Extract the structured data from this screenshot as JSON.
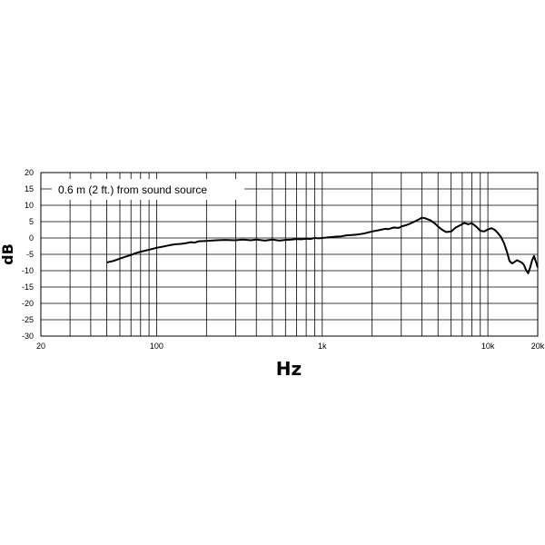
{
  "chart_data": {
    "type": "line",
    "title": "",
    "annotation": "0.6 m (2 ft.) from sound source",
    "xlabel": "Hz",
    "ylabel": "dB",
    "x_scale": "log",
    "xlim": [
      20,
      20000
    ],
    "ylim": [
      -30,
      20
    ],
    "y_ticks": [
      20,
      15,
      10,
      5,
      0,
      -5,
      -10,
      -15,
      -20,
      -25,
      -30
    ],
    "x_tick_labels": [
      {
        "value": 20,
        "label": "20"
      },
      {
        "value": 100,
        "label": "100"
      },
      {
        "value": 1000,
        "label": "1k"
      },
      {
        "value": 10000,
        "label": "10k"
      },
      {
        "value": 20000,
        "label": "20k"
      }
    ],
    "grid": true,
    "series": [
      {
        "color": "#000000",
        "points": [
          [
            50,
            -7.5
          ],
          [
            55,
            -7.0
          ],
          [
            60,
            -6.3
          ],
          [
            65,
            -5.7
          ],
          [
            70,
            -5.2
          ],
          [
            75,
            -4.6
          ],
          [
            80,
            -4.2
          ],
          [
            90,
            -3.6
          ],
          [
            100,
            -3.0
          ],
          [
            110,
            -2.6
          ],
          [
            120,
            -2.2
          ],
          [
            130,
            -1.9
          ],
          [
            140,
            -1.8
          ],
          [
            150,
            -1.6
          ],
          [
            160,
            -1.3
          ],
          [
            170,
            -1.4
          ],
          [
            180,
            -1.0
          ],
          [
            200,
            -0.9
          ],
          [
            230,
            -0.7
          ],
          [
            260,
            -0.6
          ],
          [
            300,
            -0.7
          ],
          [
            330,
            -0.5
          ],
          [
            370,
            -0.7
          ],
          [
            400,
            -0.5
          ],
          [
            450,
            -0.8
          ],
          [
            500,
            -0.5
          ],
          [
            550,
            -0.8
          ],
          [
            600,
            -0.6
          ],
          [
            650,
            -0.5
          ],
          [
            700,
            -0.3
          ],
          [
            750,
            -0.4
          ],
          [
            800,
            -0.2
          ],
          [
            850,
            -0.3
          ],
          [
            900,
            0.0
          ],
          [
            950,
            -0.1
          ],
          [
            1000,
            0.0
          ],
          [
            1100,
            0.2
          ],
          [
            1200,
            0.4
          ],
          [
            1300,
            0.5
          ],
          [
            1400,
            0.8
          ],
          [
            1500,
            0.9
          ],
          [
            1600,
            1.0
          ],
          [
            1700,
            1.2
          ],
          [
            1800,
            1.4
          ],
          [
            2000,
            2.0
          ],
          [
            2200,
            2.4
          ],
          [
            2400,
            2.8
          ],
          [
            2500,
            2.7
          ],
          [
            2700,
            3.2
          ],
          [
            2900,
            3.1
          ],
          [
            3000,
            3.5
          ],
          [
            3200,
            3.9
          ],
          [
            3400,
            4.4
          ],
          [
            3600,
            5.0
          ],
          [
            3800,
            5.6
          ],
          [
            4000,
            6.2
          ],
          [
            4200,
            6.0
          ],
          [
            4500,
            5.4
          ],
          [
            4800,
            4.4
          ],
          [
            5000,
            3.5
          ],
          [
            5300,
            2.5
          ],
          [
            5600,
            1.8
          ],
          [
            6000,
            2.0
          ],
          [
            6400,
            3.2
          ],
          [
            6800,
            3.9
          ],
          [
            7200,
            4.6
          ],
          [
            7600,
            4.2
          ],
          [
            8000,
            4.5
          ],
          [
            8500,
            3.5
          ],
          [
            9000,
            2.2
          ],
          [
            9500,
            2.0
          ],
          [
            10000,
            2.6
          ],
          [
            10500,
            3.0
          ],
          [
            11000,
            2.5
          ],
          [
            11500,
            1.5
          ],
          [
            12000,
            0.3
          ],
          [
            12500,
            -1.5
          ],
          [
            13000,
            -4.0
          ],
          [
            13500,
            -7.0
          ],
          [
            14000,
            -7.8
          ],
          [
            14500,
            -7.3
          ],
          [
            15000,
            -6.8
          ],
          [
            16000,
            -7.5
          ],
          [
            16500,
            -8.2
          ],
          [
            17000,
            -9.8
          ],
          [
            17500,
            -10.8
          ],
          [
            18000,
            -9.0
          ],
          [
            18500,
            -6.8
          ],
          [
            19000,
            -5.5
          ],
          [
            19500,
            -7.3
          ],
          [
            20000,
            -9.0
          ]
        ]
      }
    ]
  }
}
